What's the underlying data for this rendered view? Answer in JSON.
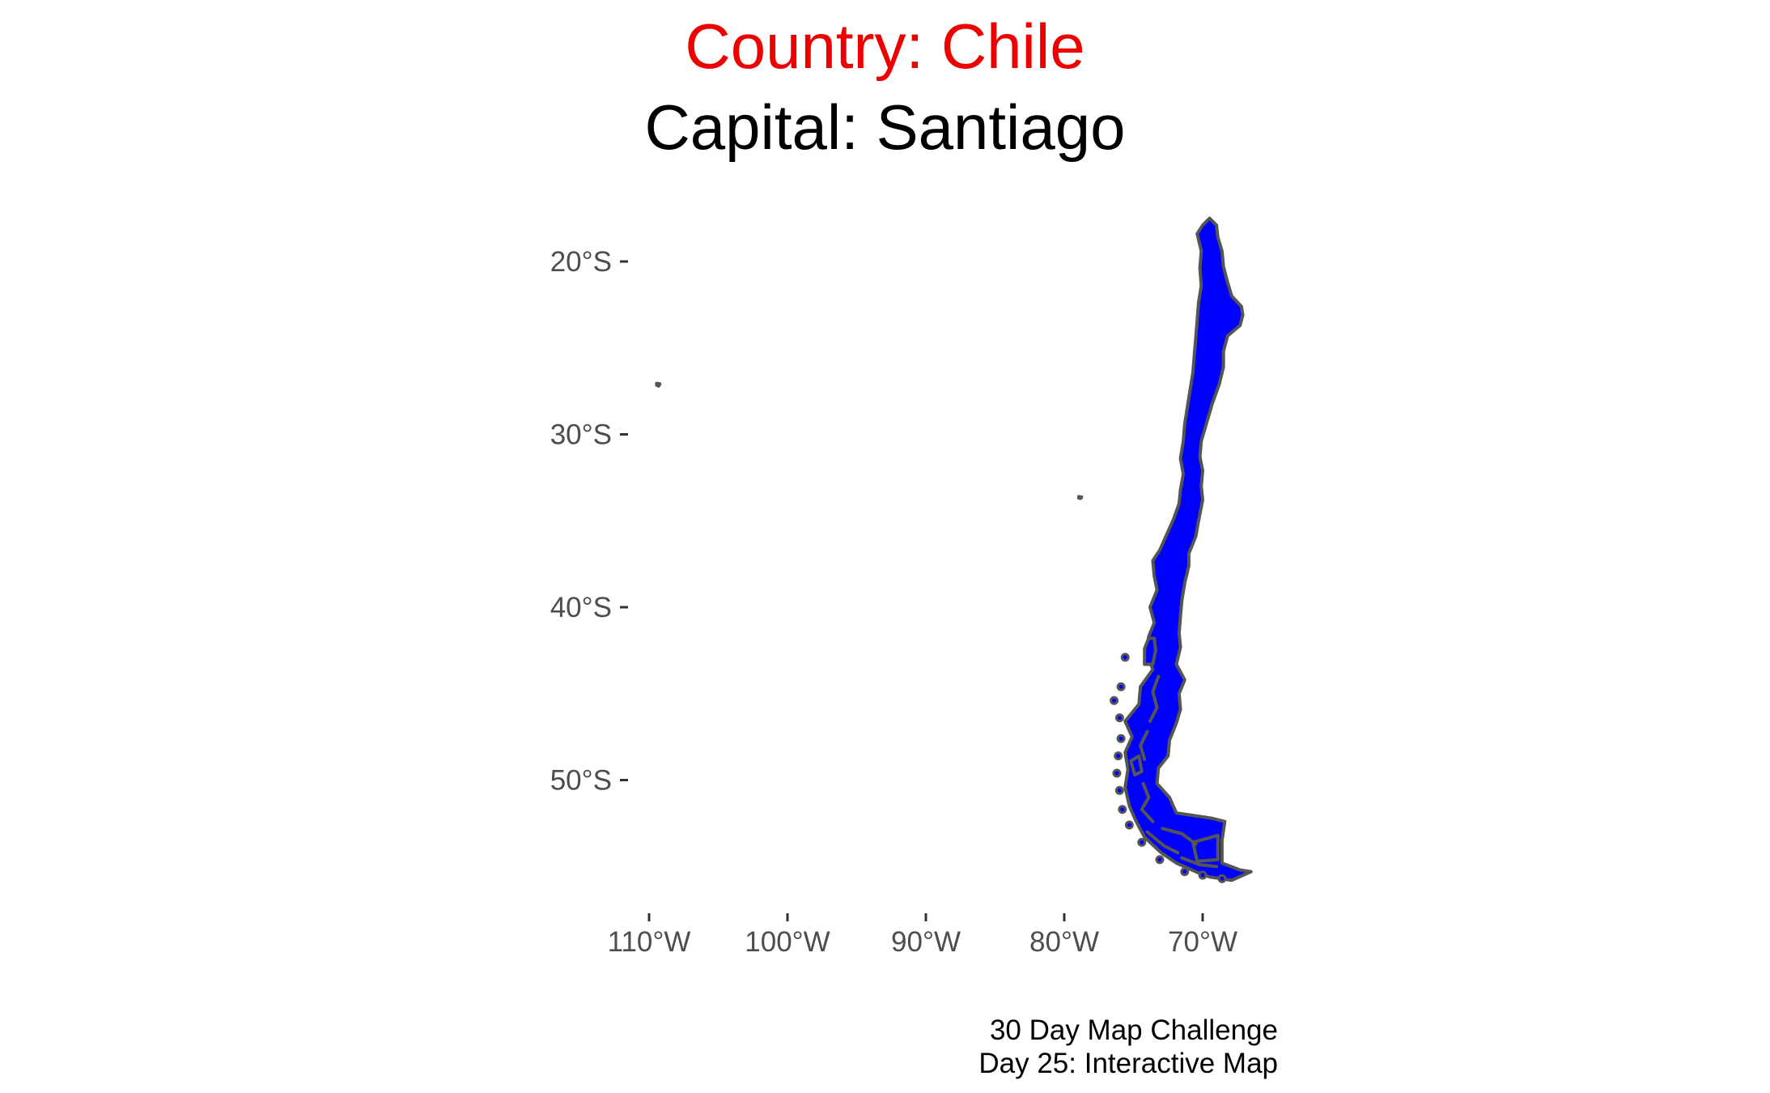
{
  "title": {
    "country": "Country: Chile",
    "capital": "Capital: Santiago",
    "country_color": "#ee0000",
    "capital_color": "#000000"
  },
  "map": {
    "projection": "longitude / latitude (equirectangular)",
    "fill_color": "#0000ff",
    "outline_color": "#555555",
    "axis_text_color": "#4d4d4d",
    "grid": false,
    "lat_ticks": [
      {
        "value": -20,
        "label": "20°S"
      },
      {
        "value": -30,
        "label": "30°S"
      },
      {
        "value": -40,
        "label": "40°S"
      },
      {
        "value": -50,
        "label": "50°S"
      }
    ],
    "lon_ticks": [
      {
        "value": -110,
        "label": "110°W"
      },
      {
        "value": -100,
        "label": "100°W"
      },
      {
        "value": -90,
        "label": "90°W"
      },
      {
        "value": -80,
        "label": "80°W"
      },
      {
        "value": -70,
        "label": "70°W"
      }
    ],
    "features": [
      {
        "name": "Chile mainland",
        "coords": [
          [
            -69.5,
            -17.5
          ],
          [
            -69.0,
            -17.9
          ],
          [
            -68.9,
            -18.6
          ],
          [
            -68.6,
            -19.4
          ],
          [
            -68.5,
            -20.3
          ],
          [
            -68.2,
            -21.2
          ],
          [
            -67.9,
            -22.0
          ],
          [
            -67.2,
            -22.6
          ],
          [
            -67.1,
            -23.1
          ],
          [
            -67.3,
            -23.7
          ],
          [
            -68.2,
            -24.3
          ],
          [
            -68.5,
            -25.2
          ],
          [
            -68.5,
            -26.1
          ],
          [
            -68.8,
            -27.1
          ],
          [
            -69.3,
            -28.2
          ],
          [
            -69.7,
            -29.3
          ],
          [
            -70.1,
            -30.4
          ],
          [
            -70.2,
            -31.3
          ],
          [
            -70.0,
            -32.1
          ],
          [
            -70.1,
            -33.0
          ],
          [
            -70.0,
            -33.8
          ],
          [
            -70.3,
            -35.0
          ],
          [
            -70.5,
            -35.9
          ],
          [
            -71.0,
            -36.9
          ],
          [
            -71.0,
            -37.6
          ],
          [
            -71.3,
            -38.6
          ],
          [
            -71.5,
            -39.6
          ],
          [
            -71.6,
            -40.5
          ],
          [
            -71.7,
            -41.5
          ],
          [
            -71.6,
            -42.3
          ],
          [
            -71.9,
            -43.3
          ],
          [
            -71.3,
            -44.2
          ],
          [
            -71.7,
            -45.0
          ],
          [
            -71.6,
            -45.9
          ],
          [
            -71.9,
            -46.7
          ],
          [
            -72.4,
            -47.7
          ],
          [
            -72.5,
            -48.6
          ],
          [
            -73.2,
            -49.3
          ],
          [
            -73.3,
            -50.2
          ],
          [
            -72.4,
            -51.0
          ],
          [
            -71.9,
            -51.9
          ],
          [
            -69.4,
            -52.2
          ],
          [
            -68.4,
            -52.4
          ],
          [
            -68.6,
            -53.5
          ],
          [
            -68.6,
            -54.8
          ],
          [
            -67.3,
            -55.2
          ],
          [
            -66.5,
            -55.3
          ],
          [
            -67.9,
            -55.8
          ],
          [
            -69.5,
            -55.6
          ],
          [
            -70.5,
            -55.3
          ],
          [
            -71.9,
            -54.8
          ],
          [
            -73.0,
            -54.2
          ],
          [
            -74.2,
            -53.3
          ],
          [
            -74.8,
            -52.4
          ],
          [
            -75.3,
            -51.5
          ],
          [
            -75.6,
            -50.4
          ],
          [
            -75.4,
            -49.4
          ],
          [
            -75.6,
            -48.4
          ],
          [
            -75.1,
            -47.5
          ],
          [
            -75.6,
            -46.6
          ],
          [
            -74.6,
            -45.6
          ],
          [
            -74.5,
            -44.6
          ],
          [
            -73.6,
            -43.6
          ],
          [
            -74.1,
            -42.6
          ],
          [
            -73.9,
            -41.7
          ],
          [
            -73.5,
            -40.9
          ],
          [
            -73.8,
            -40.0
          ],
          [
            -73.3,
            -39.0
          ],
          [
            -73.5,
            -38.2
          ],
          [
            -73.6,
            -37.3
          ],
          [
            -73.1,
            -36.7
          ],
          [
            -72.6,
            -35.8
          ],
          [
            -72.1,
            -34.9
          ],
          [
            -71.7,
            -34.0
          ],
          [
            -71.6,
            -33.2
          ],
          [
            -71.4,
            -32.3
          ],
          [
            -71.6,
            -31.4
          ],
          [
            -71.4,
            -30.4
          ],
          [
            -71.3,
            -29.4
          ],
          [
            -71.1,
            -28.4
          ],
          [
            -70.9,
            -27.4
          ],
          [
            -70.7,
            -26.4
          ],
          [
            -70.6,
            -25.4
          ],
          [
            -70.5,
            -24.4
          ],
          [
            -70.4,
            -23.4
          ],
          [
            -70.3,
            -22.4
          ],
          [
            -70.1,
            -21.4
          ],
          [
            -70.2,
            -20.4
          ],
          [
            -70.1,
            -19.4
          ],
          [
            -70.4,
            -18.4
          ],
          [
            -70.0,
            -17.9
          ]
        ]
      },
      {
        "name": "Isla Grande de Chiloe",
        "coords": [
          [
            -73.5,
            -41.8
          ],
          [
            -73.4,
            -42.5
          ],
          [
            -73.6,
            -43.3
          ],
          [
            -74.2,
            -43.3
          ],
          [
            -74.2,
            -42.4
          ],
          [
            -73.9,
            -41.8
          ]
        ]
      },
      {
        "name": "Wellington Island",
        "coords": [
          [
            -74.6,
            -48.6
          ],
          [
            -74.4,
            -49.5
          ],
          [
            -74.9,
            -49.7
          ],
          [
            -75.2,
            -48.9
          ]
        ]
      },
      {
        "name": "Tierra del Fuego east",
        "coords": [
          [
            -68.9,
            -53.2
          ],
          [
            -68.9,
            -54.6
          ],
          [
            -70.4,
            -54.7
          ],
          [
            -70.7,
            -53.6
          ]
        ]
      },
      {
        "name": "Easter Island",
        "coords": [
          [
            -109.45,
            -27.05
          ],
          [
            -109.22,
            -27.08
          ],
          [
            -109.3,
            -27.2
          ],
          [
            -109.45,
            -27.15
          ]
        ]
      },
      {
        "name": "Robinson Crusoe Island",
        "coords": [
          [
            -78.95,
            -33.6
          ],
          [
            -78.75,
            -33.62
          ],
          [
            -78.8,
            -33.7
          ],
          [
            -78.95,
            -33.68
          ]
        ]
      }
    ],
    "islands": [
      {
        "name": "islet",
        "lon": -75.6,
        "lat": -42.9
      },
      {
        "name": "islet",
        "lon": -75.9,
        "lat": -44.6
      },
      {
        "name": "islet",
        "lon": -76.4,
        "lat": -45.4
      },
      {
        "name": "islet",
        "lon": -76.0,
        "lat": -46.4
      },
      {
        "name": "islet",
        "lon": -75.9,
        "lat": -47.6
      },
      {
        "name": "islet",
        "lon": -76.1,
        "lat": -48.6
      },
      {
        "name": "islet",
        "lon": -76.2,
        "lat": -49.6
      },
      {
        "name": "islet",
        "lon": -76.0,
        "lat": -50.6
      },
      {
        "name": "islet",
        "lon": -75.8,
        "lat": -51.7
      },
      {
        "name": "islet",
        "lon": -75.3,
        "lat": -52.6
      },
      {
        "name": "islet",
        "lon": -74.4,
        "lat": -53.6
      },
      {
        "name": "islet",
        "lon": -73.1,
        "lat": -54.6
      },
      {
        "name": "islet",
        "lon": -71.3,
        "lat": -55.3
      },
      {
        "name": "islet",
        "lon": -70.0,
        "lat": -55.5
      },
      {
        "name": "islet",
        "lon": -68.6,
        "lat": -55.7
      }
    ],
    "inner_channels": [
      [
        [
          -73.2,
          -44.0
        ],
        [
          -73.6,
          -44.9
        ],
        [
          -73.3,
          -45.8
        ],
        [
          -73.8,
          -46.6
        ]
      ],
      [
        [
          -74.0,
          -47.2
        ],
        [
          -74.5,
          -48.0
        ],
        [
          -74.2,
          -48.8
        ]
      ],
      [
        [
          -74.3,
          -50.2
        ],
        [
          -73.9,
          -51.0
        ],
        [
          -74.4,
          -51.7
        ],
        [
          -73.6,
          -52.4
        ]
      ],
      [
        [
          -72.9,
          -52.8
        ],
        [
          -71.5,
          -53.1
        ],
        [
          -70.5,
          -53.7
        ]
      ],
      [
        [
          -74.0,
          -53.0
        ],
        [
          -72.8,
          -53.8
        ],
        [
          -71.8,
          -54.2
        ]
      ],
      [
        [
          -71.5,
          -54.5
        ],
        [
          -70.2,
          -54.9
        ],
        [
          -69.0,
          -55.0
        ]
      ]
    ]
  },
  "caption": {
    "line1": "30 Day Map Challenge",
    "line2": "Day 25: Interactive Map"
  }
}
